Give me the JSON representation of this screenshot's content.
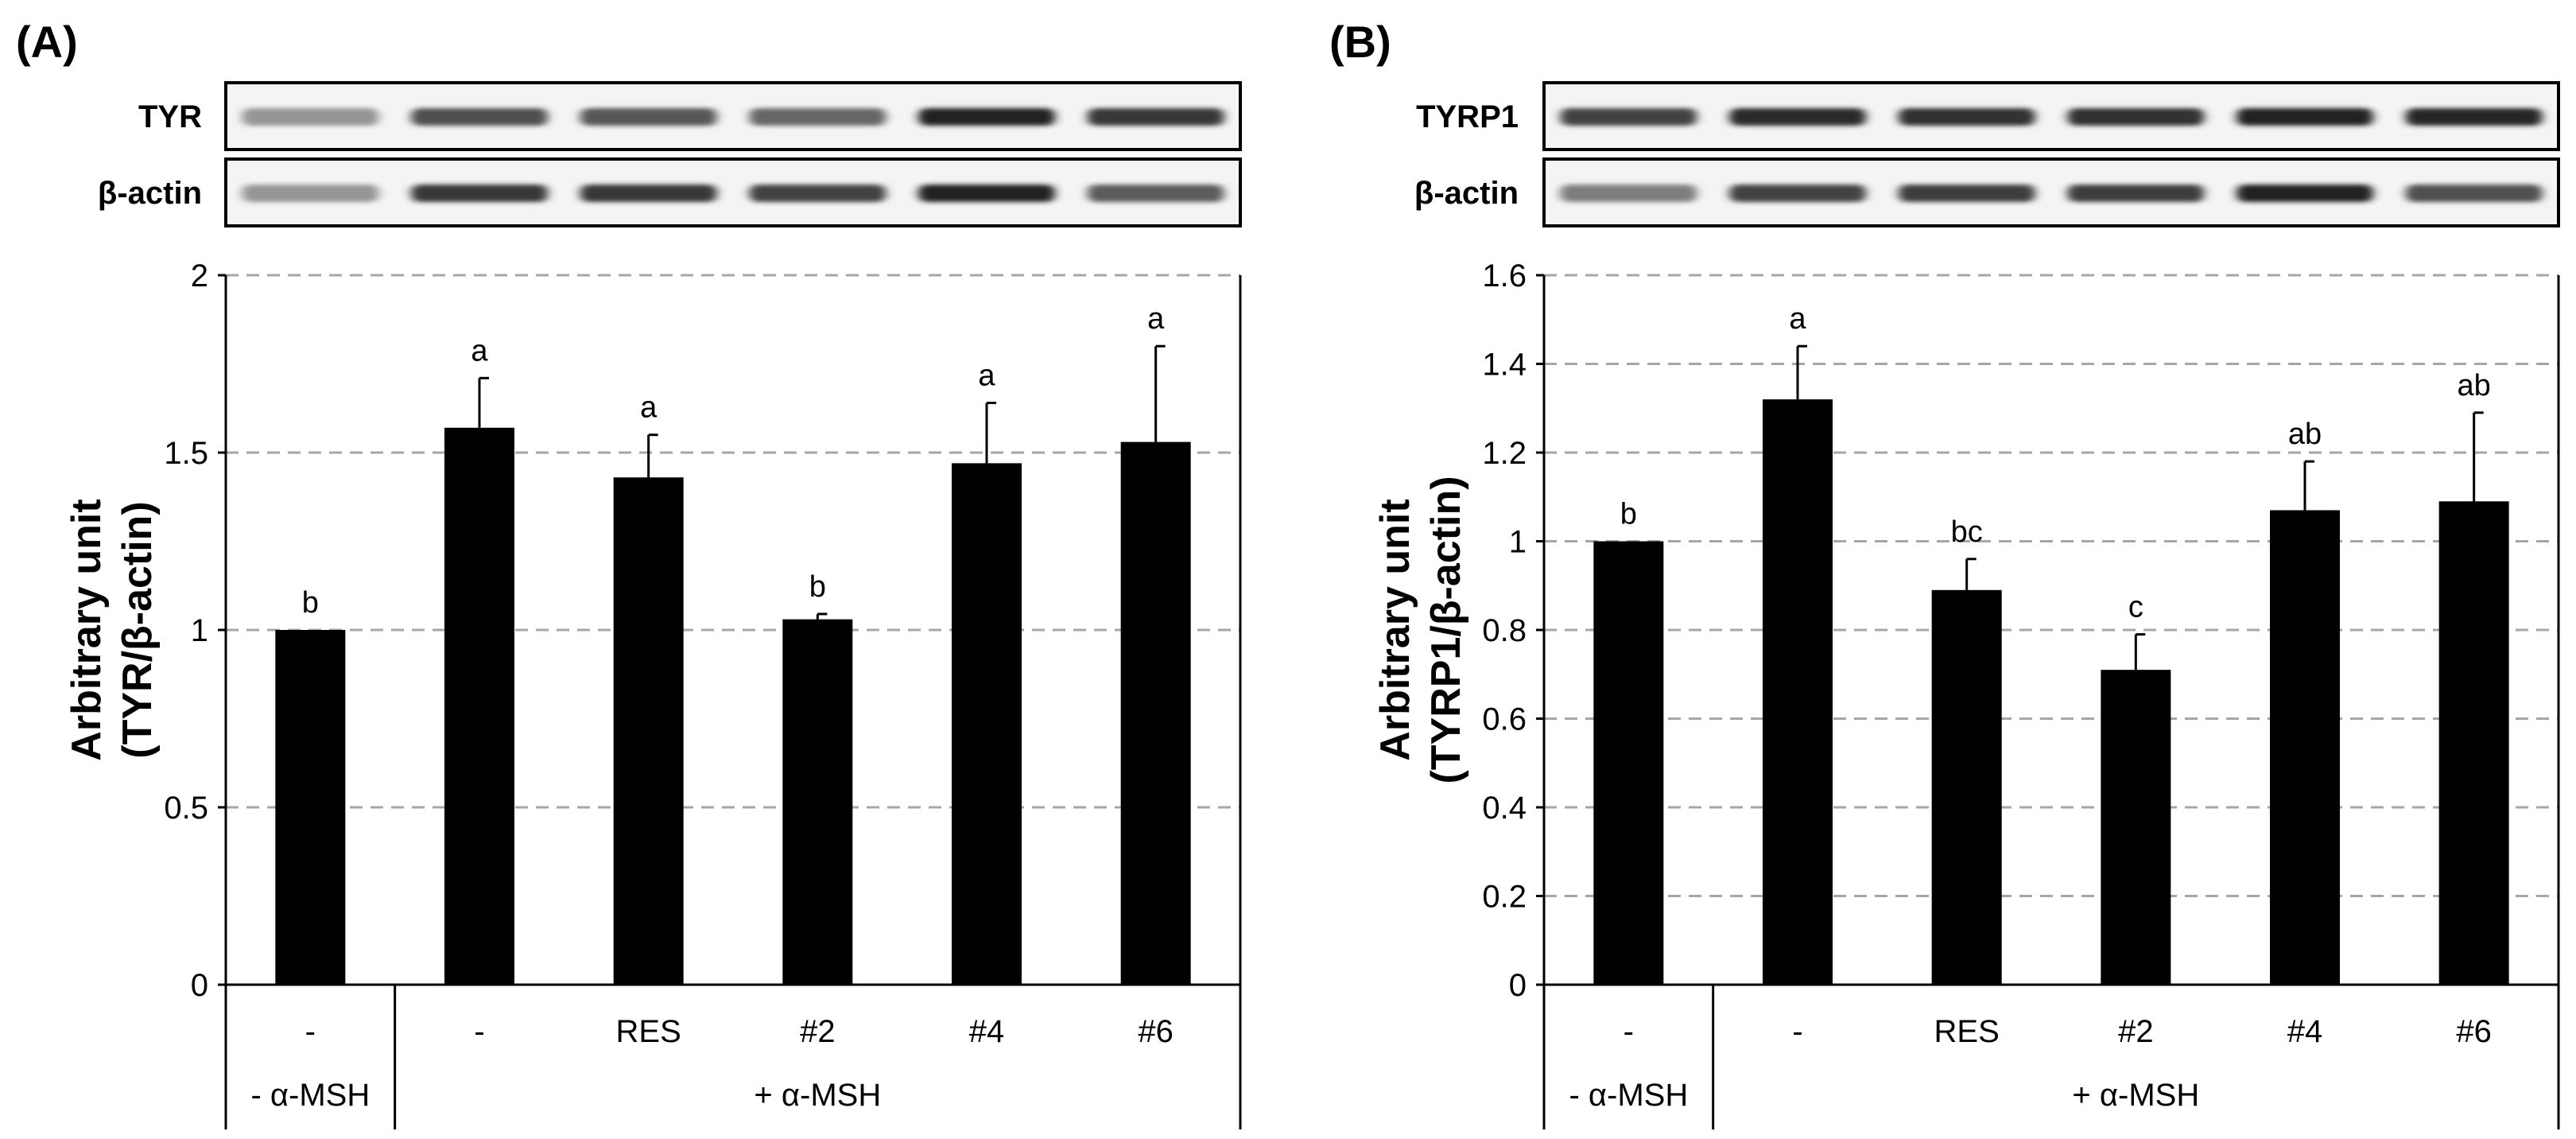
{
  "chart_data": [
    {
      "type": "bar",
      "panel_label": "(A)",
      "blots": [
        {
          "label": "TYR",
          "intensities": [
            0.45,
            0.75,
            0.72,
            0.65,
            0.95,
            0.85
          ]
        },
        {
          "label": "β-actin",
          "intensities": [
            0.45,
            0.85,
            0.85,
            0.8,
            0.95,
            0.7
          ]
        }
      ],
      "categories": [
        "-",
        "-",
        "RES",
        "#2",
        "#4",
        "#6"
      ],
      "group_labels": [
        "- α-MSH",
        "+ α-MSH"
      ],
      "values": [
        1.0,
        1.57,
        1.43,
        1.03,
        1.47,
        1.53
      ],
      "errors": [
        0.0,
        0.14,
        0.12,
        0.015,
        0.17,
        0.27
      ],
      "significance": [
        "b",
        "a",
        "a",
        "b",
        "a",
        "a"
      ],
      "ylabel_lines": [
        "Arbitrary unit",
        "(TYR/β-actin)"
      ],
      "ylim": [
        0,
        2
      ],
      "yticks": [
        0,
        0.5,
        1,
        1.5,
        2
      ],
      "ytick_labels": [
        "0",
        "0.5",
        "1",
        "1.5",
        "2"
      ],
      "grid": "dashed horizontal",
      "bar_color": "#000000",
      "grid_color": "#a6a6a6"
    },
    {
      "type": "bar",
      "panel_label": "(B)",
      "blots": [
        {
          "label": "TYRP1",
          "intensities": [
            0.8,
            0.9,
            0.88,
            0.88,
            0.95,
            0.92
          ]
        },
        {
          "label": "β-actin",
          "intensities": [
            0.55,
            0.8,
            0.82,
            0.82,
            0.95,
            0.75
          ]
        }
      ],
      "categories": [
        "-",
        "-",
        "RES",
        "#2",
        "#4",
        "#6"
      ],
      "group_labels": [
        "- α-MSH",
        "+ α-MSH"
      ],
      "values": [
        1.0,
        1.32,
        0.89,
        0.71,
        1.07,
        1.09
      ],
      "errors": [
        0.0,
        0.12,
        0.07,
        0.08,
        0.11,
        0.2
      ],
      "significance": [
        "b",
        "a",
        "bc",
        "c",
        "ab",
        "ab"
      ],
      "ylabel_lines": [
        "Arbitrary unit",
        "(TYRP1/β-actin)"
      ],
      "ylim": [
        0,
        1.6
      ],
      "yticks": [
        0,
        0.2,
        0.4,
        0.6,
        0.8,
        1,
        1.2,
        1.4,
        1.6
      ],
      "ytick_labels": [
        "0",
        "0.2",
        "0.4",
        "0.6",
        "0.8",
        "1",
        "1.2",
        "1.4",
        "1.6"
      ],
      "grid": "dashed horizontal",
      "bar_color": "#000000",
      "grid_color": "#a6a6a6"
    }
  ]
}
